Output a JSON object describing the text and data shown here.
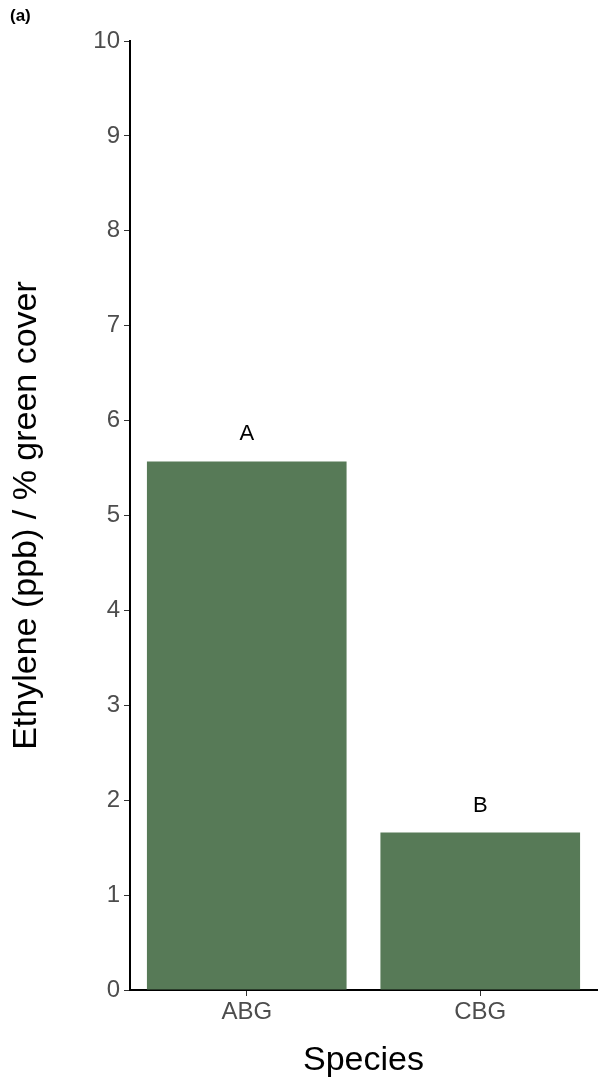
{
  "chart_data": {
    "type": "bar",
    "xlabel": "Species",
    "ylabel": "Ethylene (ppb) / % green cover",
    "categories": [
      "ABG",
      "CBG"
    ],
    "values": [
      5.57,
      1.66
    ],
    "color": "#577a57",
    "ylim": [
      0,
      10
    ],
    "yticks": [
      0,
      1,
      2,
      3,
      4,
      5,
      6,
      7,
      8,
      9,
      10
    ],
    "grid": false,
    "annotations": [
      "(a)",
      "A",
      "B"
    ]
  }
}
